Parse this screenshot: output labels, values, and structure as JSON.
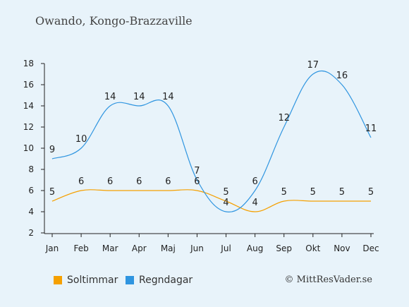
{
  "title": "Owando, Kongo-Brazzaville",
  "copyright": "© MittResVader.se",
  "chart_data": {
    "type": "line",
    "categories": [
      "Jan",
      "Feb",
      "Mar",
      "Apr",
      "Maj",
      "Jun",
      "Jul",
      "Aug",
      "Sep",
      "Okt",
      "Nov",
      "Dec"
    ],
    "ylim": [
      2,
      18
    ],
    "yticks": [
      2,
      4,
      6,
      8,
      10,
      12,
      14,
      16,
      18
    ],
    "grid": false,
    "legend_position": "bottom-left",
    "series": [
      {
        "name": "Soltimmar",
        "color": "#f5a000",
        "values": [
          5,
          6,
          6,
          6,
          6,
          6,
          5,
          4,
          5,
          5,
          5,
          5
        ]
      },
      {
        "name": "Regndagar",
        "color": "#2f95e0",
        "values": [
          9,
          10,
          14,
          14,
          14,
          7,
          4,
          6,
          12,
          17,
          16,
          11
        ]
      }
    ]
  }
}
